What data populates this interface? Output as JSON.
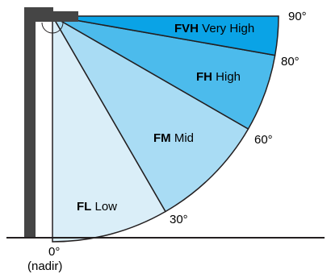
{
  "zones": {
    "low": {
      "code": "FL",
      "name": "Low",
      "color": "#daeef8"
    },
    "mid": {
      "code": "FM",
      "name": "Mid",
      "color": "#a9dcf4"
    },
    "high": {
      "code": "FH",
      "name": "High",
      "color": "#4cbbec"
    },
    "very_high": {
      "code": "FVH",
      "name": "Very High",
      "color": "#0aa3e6"
    }
  },
  "angles": {
    "a0": "0°",
    "nadir": "(nadir)",
    "a30": "30°",
    "a60": "60°",
    "a80": "80°",
    "a90": "90°"
  },
  "colors": {
    "pole": "#454545",
    "outline": "#231f20"
  }
}
